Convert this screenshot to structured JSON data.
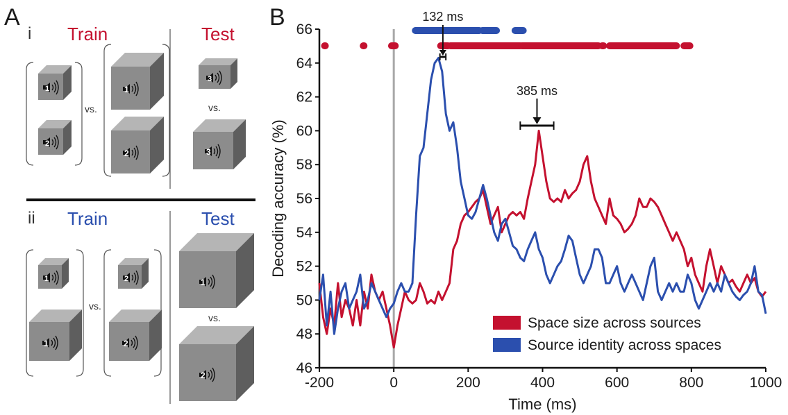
{
  "panel_a": {
    "letter": "A",
    "section_i": {
      "numeral": "i",
      "train_label": "Train",
      "test_label": "Test"
    },
    "section_ii": {
      "numeral": "ii",
      "train_label": "Train",
      "test_label": "Test"
    },
    "vs_label": "vs.",
    "colors": {
      "red": "#c4112f",
      "blue": "#2b4fae"
    }
  },
  "panel_b": {
    "letter": "B"
  },
  "chart_data": {
    "type": "line",
    "xlabel": "Time (ms)",
    "ylabel": "Decoding accuracy (%)",
    "xlim": [
      -200,
      1000
    ],
    "ylim": [
      46,
      66
    ],
    "x_ticks": [
      -200,
      0,
      200,
      400,
      600,
      800,
      1000
    ],
    "y_ticks": [
      46,
      48,
      50,
      52,
      54,
      56,
      58,
      60,
      62,
      64,
      66
    ],
    "grid": false,
    "legend_position": "bottom-right",
    "onset_line_x": 0,
    "series": [
      {
        "name": "Space size across sources",
        "color": "#c4112f",
        "x": [
          -200,
          -190,
          -180,
          -170,
          -160,
          -150,
          -140,
          -130,
          -120,
          -110,
          -100,
          -90,
          -80,
          -70,
          -60,
          -50,
          -40,
          -30,
          -20,
          -10,
          0,
          10,
          20,
          30,
          40,
          50,
          60,
          70,
          80,
          90,
          100,
          110,
          120,
          130,
          140,
          150,
          160,
          170,
          180,
          190,
          200,
          210,
          220,
          230,
          240,
          250,
          260,
          270,
          280,
          290,
          300,
          310,
          320,
          330,
          340,
          350,
          360,
          370,
          380,
          390,
          400,
          410,
          420,
          430,
          440,
          450,
          460,
          470,
          480,
          490,
          500,
          510,
          520,
          530,
          540,
          550,
          560,
          570,
          580,
          590,
          600,
          610,
          620,
          630,
          640,
          650,
          660,
          670,
          680,
          690,
          700,
          710,
          720,
          730,
          740,
          750,
          760,
          770,
          780,
          790,
          800,
          810,
          820,
          830,
          840,
          850,
          860,
          870,
          880,
          890,
          900,
          910,
          920,
          930,
          940,
          950,
          960,
          970,
          980,
          990,
          1000
        ],
        "y": [
          51,
          49,
          48,
          49.5,
          48.5,
          51,
          49,
          50,
          49.5,
          48.5,
          50,
          48.5,
          50.5,
          49.5,
          51.5,
          50.5,
          50,
          50.5,
          49.5,
          48.5,
          47.2,
          48.5,
          49.5,
          50.5,
          50,
          49.8,
          50,
          51,
          50.5,
          49.8,
          50,
          49.8,
          50.5,
          50,
          50.5,
          51,
          53,
          53.5,
          54.5,
          55,
          55.2,
          55.5,
          55.8,
          56,
          56.5,
          55.5,
          54.5,
          55,
          55.5,
          54,
          54.5,
          55,
          55.2,
          55,
          55.2,
          54.8,
          56,
          57,
          58,
          60,
          58.5,
          57,
          56,
          55.8,
          56,
          55.8,
          56.5,
          56,
          56.3,
          56.5,
          57,
          58,
          58.5,
          57,
          56,
          55.5,
          55,
          54.5,
          56,
          55,
          54.8,
          54.5,
          54,
          54.2,
          54.5,
          55,
          56,
          55.5,
          55.5,
          56,
          55.8,
          55.5,
          55,
          54.5,
          54,
          53.5,
          54,
          53.5,
          53,
          52,
          52.5,
          51.5,
          51,
          50.5,
          52,
          53,
          52,
          51,
          52,
          51.5,
          51,
          51.2,
          50.8,
          50.5,
          51,
          51.5,
          51,
          51.3,
          50.5,
          50.2,
          50.5
        ]
      },
      {
        "name": "Source identity across spaces",
        "color": "#2b4fae",
        "x": [
          -200,
          -190,
          -180,
          -170,
          -160,
          -150,
          -140,
          -130,
          -120,
          -110,
          -100,
          -90,
          -80,
          -70,
          -60,
          -50,
          -40,
          -30,
          -20,
          -10,
          0,
          10,
          20,
          30,
          40,
          50,
          60,
          70,
          80,
          90,
          100,
          110,
          120,
          130,
          140,
          150,
          160,
          170,
          180,
          190,
          200,
          210,
          220,
          230,
          240,
          250,
          260,
          270,
          280,
          290,
          300,
          310,
          320,
          330,
          340,
          350,
          360,
          370,
          380,
          390,
          400,
          410,
          420,
          430,
          440,
          450,
          460,
          470,
          480,
          490,
          500,
          510,
          520,
          530,
          540,
          550,
          560,
          570,
          580,
          590,
          600,
          610,
          620,
          630,
          640,
          650,
          660,
          670,
          680,
          690,
          700,
          710,
          720,
          730,
          740,
          750,
          760,
          770,
          780,
          790,
          800,
          810,
          820,
          830,
          840,
          850,
          860,
          870,
          880,
          890,
          900,
          910,
          920,
          930,
          940,
          950,
          960,
          970,
          980,
          990,
          1000
        ],
        "y": [
          50,
          51.5,
          48.5,
          50.5,
          48,
          49.5,
          50.5,
          51,
          49.5,
          50,
          50.5,
          51.5,
          49.5,
          50,
          51,
          50.5,
          50,
          49.5,
          49,
          49.5,
          49.8,
          50.5,
          51,
          50.5,
          50.5,
          51,
          55,
          58.5,
          59,
          61,
          63,
          64,
          64.3,
          63.5,
          61,
          60,
          60.5,
          59,
          57,
          56,
          55,
          54.8,
          55.2,
          56,
          56.8,
          56,
          55,
          54,
          53.5,
          54.5,
          54.8,
          54,
          53.2,
          53,
          52.5,
          52.3,
          53,
          53.5,
          54,
          53,
          52.5,
          51.5,
          51,
          51.5,
          52,
          52.3,
          53,
          53.8,
          53.5,
          52.5,
          51.5,
          51,
          51.5,
          52,
          53,
          53,
          52.5,
          51,
          51,
          51.5,
          52,
          51,
          50.5,
          51,
          51.5,
          51,
          50.5,
          50,
          51,
          52,
          52.5,
          50.5,
          50,
          50.5,
          51,
          50.5,
          51,
          50.5,
          50.5,
          51.5,
          51,
          50,
          49.5,
          50,
          50.5,
          51,
          50.5,
          51,
          50.5,
          51.5,
          51,
          50.5,
          50.2,
          50,
          50.3,
          50.5,
          51,
          52,
          50.5,
          50.3,
          49.2
        ]
      }
    ],
    "significance": {
      "red_segments": [
        [
          -186,
          -184
        ],
        [
          -82,
          -80
        ],
        [
          -6,
          4
        ],
        [
          126,
          146
        ],
        [
          152,
          340
        ],
        [
          344,
          550
        ],
        [
          560,
          564
        ],
        [
          580,
          760
        ],
        [
          780,
          796
        ]
      ],
      "blue_segments": [
        [
          58,
          230
        ],
        [
          238,
          276
        ],
        [
          326,
          348
        ]
      ]
    },
    "annotations": [
      {
        "label": "132 ms",
        "x": 132,
        "ci": [
          124,
          140
        ]
      },
      {
        "label": "385 ms",
        "x": 385,
        "ci": [
          340,
          430
        ]
      }
    ]
  }
}
